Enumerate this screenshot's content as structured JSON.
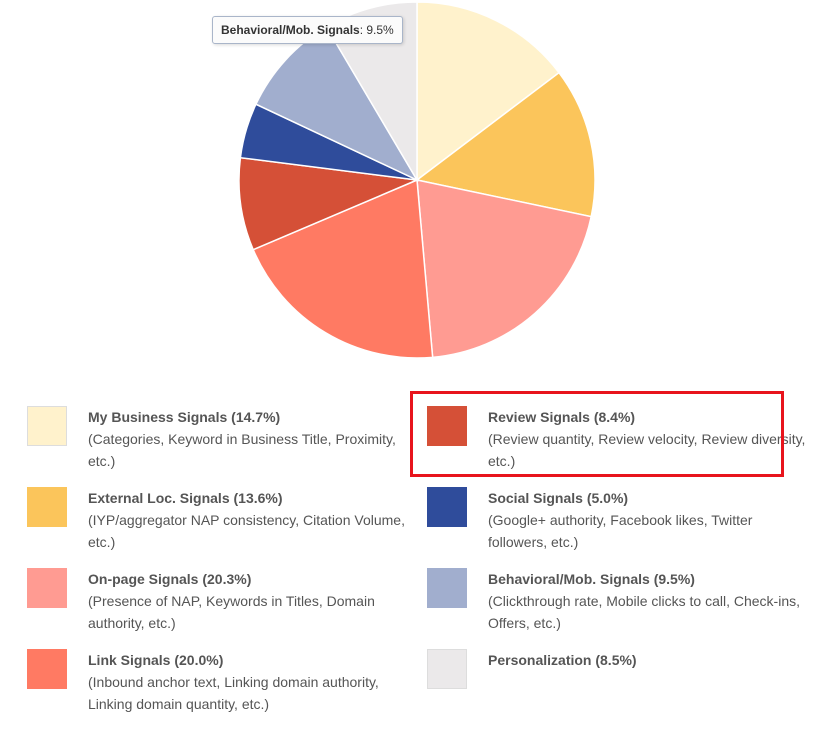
{
  "tooltip": {
    "label": "Behavioral/Mob. Signals",
    "value": ": 9.5%"
  },
  "chart_data": {
    "type": "pie",
    "start_angle_deg": 0,
    "direction": "clockwise",
    "slices": [
      {
        "name": "My Business Signals",
        "value": 14.7,
        "color": "#fff2cc"
      },
      {
        "name": "External Loc. Signals",
        "value": 13.6,
        "color": "#fbc55b"
      },
      {
        "name": "On-page Signals",
        "value": 20.3,
        "color": "#ff9b92"
      },
      {
        "name": "Link Signals",
        "value": 20.0,
        "color": "#ff7a63"
      },
      {
        "name": "Review Signals",
        "value": 8.4,
        "color": "#d55037"
      },
      {
        "name": "Social Signals",
        "value": 5.0,
        "color": "#2f4c9b"
      },
      {
        "name": "Behavioral/Mob. Signals",
        "value": 9.5,
        "color": "#a1aece"
      },
      {
        "name": "Personalization",
        "value": 8.5,
        "color": "#ebe9ea"
      }
    ]
  },
  "legend": [
    {
      "title": "My Business Signals (14.7%)",
      "desc": "(Categories, Keyword in Business Title, Proximity, etc.)",
      "color": "#fff2cc"
    },
    {
      "title": "Review Signals (8.4%)",
      "desc": "(Review quantity, Review velocity, Review diversity, etc.)",
      "color": "#d55037"
    },
    {
      "title": "External Loc. Signals (13.6%)",
      "desc": "(IYP/aggregator NAP consistency, Citation Volume, etc.)",
      "color": "#fbc55b"
    },
    {
      "title": "Social Signals (5.0%)",
      "desc": "(Google+ authority, Facebook likes, Twitter followers, etc.)",
      "color": "#2f4c9b"
    },
    {
      "title": "On-page Signals (20.3%)",
      "desc": "(Presence of NAP, Keywords in Titles, Domain authority, etc.)",
      "color": "#ff9b92"
    },
    {
      "title": "Behavioral/Mob. Signals (9.5%)",
      "desc": "(Clickthrough rate, Mobile clicks to call, Check-ins, Offers, etc.)",
      "color": "#a1aece"
    },
    {
      "title": "Link Signals (20.0%)",
      "desc": "(Inbound anchor text, Linking domain authority, Linking domain quantity, etc.)",
      "color": "#ff7a63"
    },
    {
      "title": "Personalization (8.5%)",
      "desc": "",
      "color": "#ebe9ea"
    }
  ],
  "highlight_color": "#e8141c"
}
